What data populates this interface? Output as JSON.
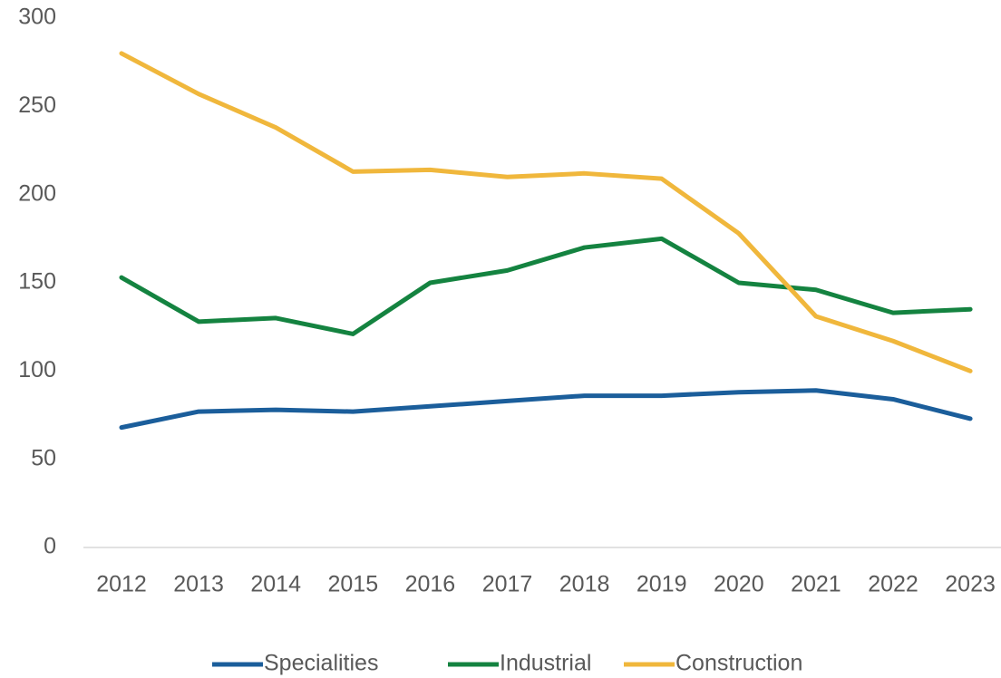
{
  "chart_data": {
    "type": "line",
    "categories": [
      "2012",
      "2013",
      "2014",
      "2015",
      "2016",
      "2017",
      "2018",
      "2019",
      "2020",
      "2021",
      "2022",
      "2023"
    ],
    "series": [
      {
        "name": "Specialities",
        "color": "#1b5e9b",
        "values": [
          68,
          77,
          78,
          77,
          80,
          83,
          86,
          86,
          88,
          89,
          84,
          73
        ]
      },
      {
        "name": "Industrial",
        "color": "#148340",
        "values": [
          153,
          128,
          130,
          121,
          150,
          157,
          170,
          175,
          150,
          146,
          133,
          135
        ]
      },
      {
        "name": "Construction",
        "color": "#f0b73c",
        "values": [
          280,
          257,
          238,
          213,
          214,
          210,
          212,
          209,
          178,
          131,
          117,
          100
        ]
      }
    ],
    "ylim": [
      0,
      300
    ],
    "yticks": [
      0,
      50,
      100,
      150,
      200,
      250,
      300
    ],
    "grid": false,
    "legend": "bottom"
  }
}
